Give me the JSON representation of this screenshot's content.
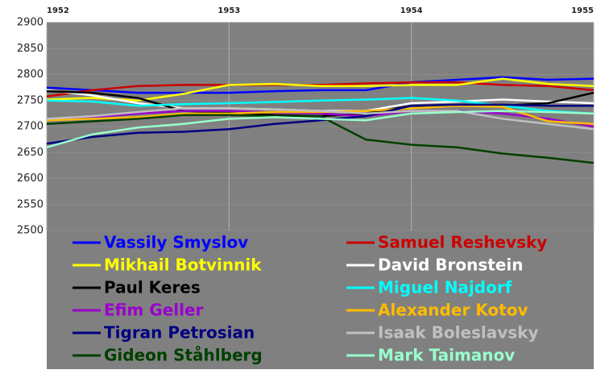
{
  "chart_data": {
    "type": "line",
    "x": [
      1952,
      1952.25,
      1952.5,
      1952.75,
      1953,
      1953.25,
      1953.5,
      1953.75,
      1954,
      1954.25,
      1954.5,
      1954.75,
      1955
    ],
    "xlim": [
      1952,
      1955
    ],
    "xticks": [
      1952,
      1953,
      1954,
      1955
    ],
    "ylim": [
      2500,
      2900
    ],
    "yticks": [
      2500,
      2550,
      2600,
      2650,
      2700,
      2750,
      2800,
      2850,
      2900
    ],
    "grid": true,
    "series": [
      {
        "name": "Vassily Smyslov",
        "color": "#0000ff",
        "values": [
          2775,
          2770,
          2765,
          2765,
          2765,
          2768,
          2770,
          2770,
          2785,
          2790,
          2795,
          2790,
          2792
        ]
      },
      {
        "name": "Samuel Reshevsky",
        "color": "#cc0000",
        "values": [
          2758,
          2770,
          2778,
          2780,
          2780,
          2780,
          2780,
          2783,
          2785,
          2785,
          2780,
          2778,
          2770
        ]
      },
      {
        "name": "Mikhail Botvinnik",
        "color": "#ffff00",
        "values": [
          2752,
          2755,
          2750,
          2763,
          2780,
          2782,
          2778,
          2778,
          2780,
          2780,
          2792,
          2782,
          2778
        ]
      },
      {
        "name": "David Bronstein",
        "color": "#ffffff",
        "values": [
          2770,
          2760,
          2745,
          2735,
          2735,
          2733,
          2730,
          2730,
          2745,
          2748,
          2752,
          2748,
          2745
        ]
      },
      {
        "name": "Paul Keres",
        "color": "#000000",
        "values": [
          2768,
          2765,
          2755,
          2730,
          2727,
          2722,
          2720,
          2725,
          2740,
          2740,
          2740,
          2745,
          2765
        ]
      },
      {
        "name": "Miguel Najdorf",
        "color": "#00ffff",
        "values": [
          2750,
          2748,
          2740,
          2743,
          2745,
          2747,
          2750,
          2752,
          2755,
          2750,
          2740,
          2730,
          2725
        ]
      },
      {
        "name": "Efim Geller",
        "color": "#9900cc",
        "values": [
          2715,
          2718,
          2725,
          2730,
          2730,
          2727,
          2725,
          2720,
          2730,
          2730,
          2725,
          2715,
          2700
        ]
      },
      {
        "name": "Alexander Kotov",
        "color": "#ffbb00",
        "values": [
          2712,
          2715,
          2718,
          2725,
          2725,
          2728,
          2728,
          2730,
          2735,
          2740,
          2738,
          2710,
          2705
        ]
      },
      {
        "name": "Tigran Petrosian",
        "color": "#000080",
        "values": [
          2667,
          2680,
          2688,
          2690,
          2695,
          2705,
          2712,
          2720,
          2740,
          2742,
          2742,
          2740,
          2740
        ]
      },
      {
        "name": "Isaak Boleslavsky",
        "color": "#c0c0c0",
        "values": [
          2715,
          2720,
          2728,
          2735,
          2735,
          2733,
          2730,
          2725,
          2730,
          2730,
          2715,
          2705,
          2695
        ]
      },
      {
        "name": "Gideon Ståhlberg",
        "color": "#004000",
        "values": [
          2705,
          2710,
          2715,
          2722,
          2722,
          2720,
          2720,
          2675,
          2665,
          2660,
          2648,
          2640,
          2630
        ]
      },
      {
        "name": "Mark Taimanov",
        "color": "#99ffcc",
        "values": [
          2660,
          2685,
          2698,
          2705,
          2715,
          2718,
          2715,
          2712,
          2725,
          2728,
          2730,
          2728,
          2725
        ]
      }
    ]
  }
}
